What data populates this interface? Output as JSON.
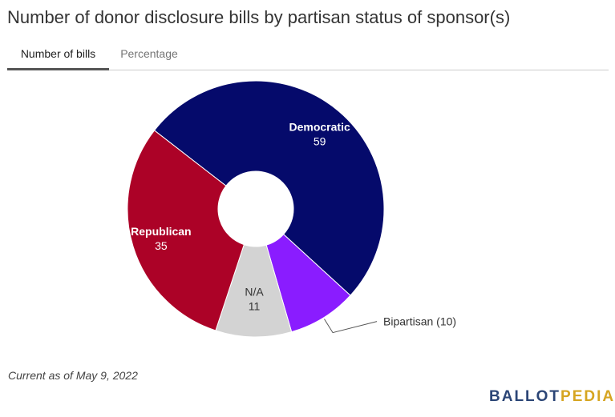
{
  "title": "Number of donor disclosure bills by partisan status of sponsor(s)",
  "tabs": [
    {
      "label": "Number of bills",
      "active": true
    },
    {
      "label": "Percentage",
      "active": false
    }
  ],
  "footnote": "Current as of May 9, 2022",
  "logo": {
    "part1": "BALLOT",
    "part2": "PEDIA",
    "color1": "#2b4576",
    "color2": "#d6a521"
  },
  "chart_data": {
    "type": "pie",
    "donut": true,
    "title": "Number of donor disclosure bills by partisan status of sponsor(s)",
    "slices": [
      {
        "name": "Democratic",
        "value": 59,
        "color": "#050a6b",
        "label_style": "inside-bold",
        "text_color": "#ffffff"
      },
      {
        "name": "Bipartisan",
        "value": 10,
        "color": "#8a1cff",
        "label_style": "outside",
        "text": "Bipartisan (10)"
      },
      {
        "name": "N/A",
        "value": 11,
        "color": "#d3d3d3",
        "label_style": "inside",
        "text_color": "#333333"
      },
      {
        "name": "Republican",
        "value": 35,
        "color": "#ac0227",
        "label_style": "inside-bold",
        "text_color": "#ffffff"
      }
    ]
  }
}
